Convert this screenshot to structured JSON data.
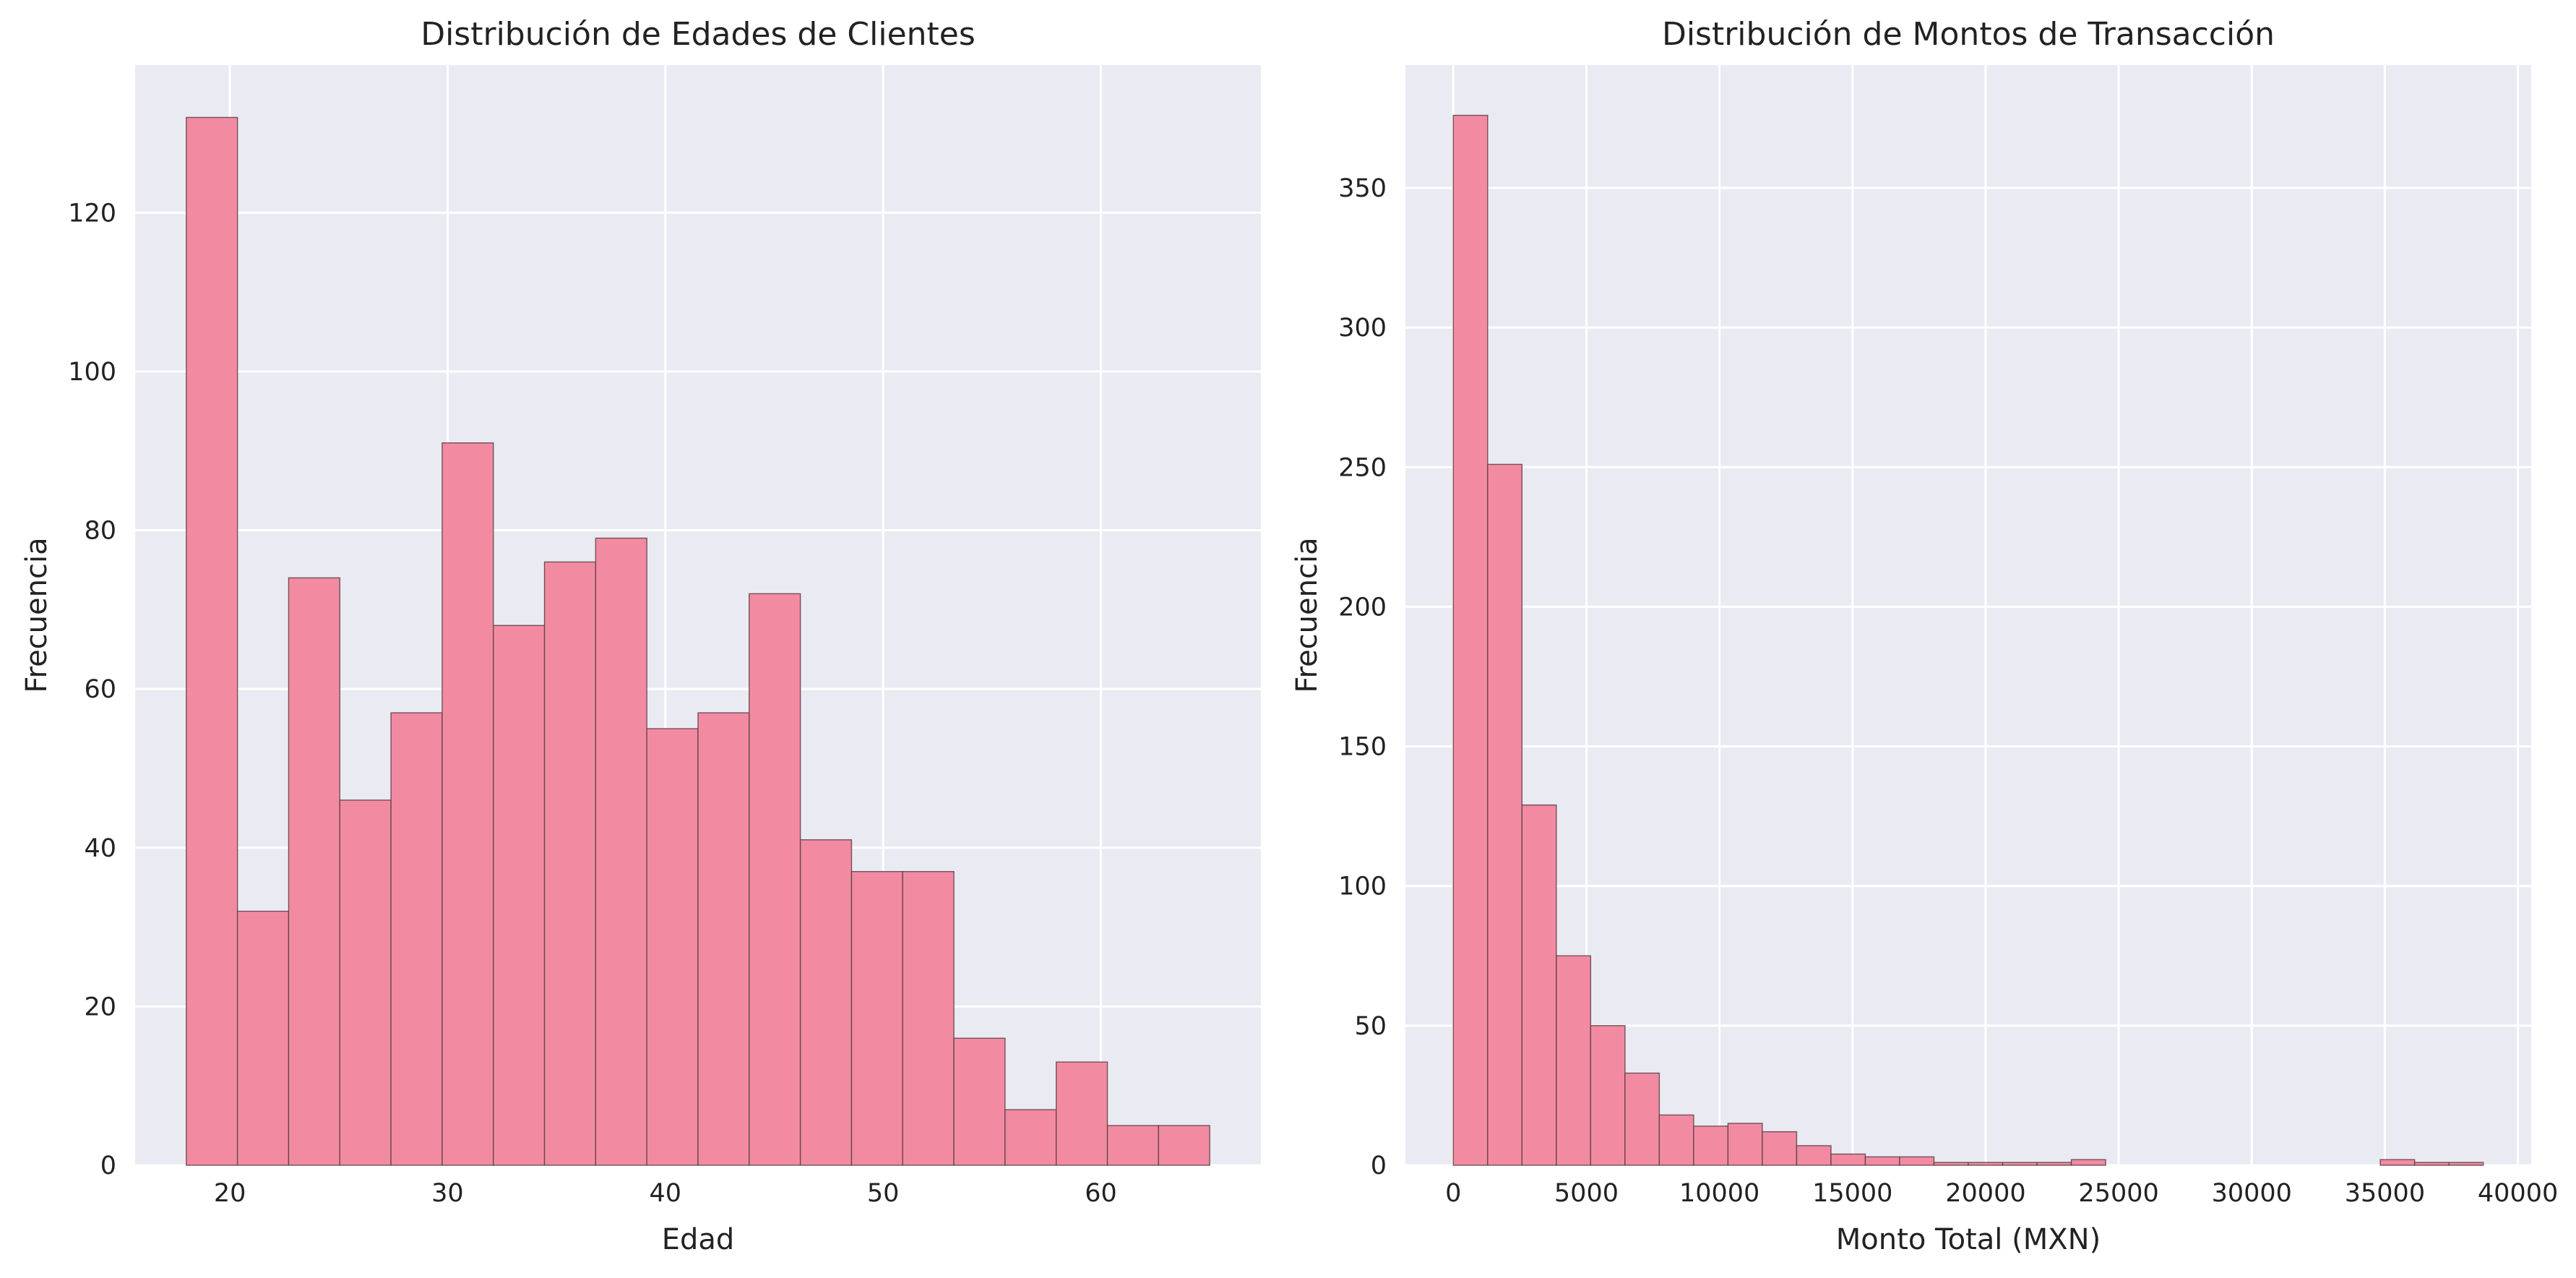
{
  "chart_data": [
    {
      "type": "bar",
      "title": "Distribución de Edades de Clientes",
      "xlabel": "Edad",
      "ylabel": "Frecuencia",
      "xlim": [
        15.65,
        67.35
      ],
      "ylim": [
        0,
        138.6
      ],
      "xticks": [
        20,
        30,
        40,
        50,
        60
      ],
      "yticks": [
        0,
        20,
        40,
        60,
        80,
        100,
        120
      ],
      "grid": true,
      "bins": [
        {
          "x0": 18.0,
          "x1": 20.35,
          "value": 132
        },
        {
          "x0": 20.35,
          "x1": 22.7,
          "value": 32
        },
        {
          "x0": 22.7,
          "x1": 25.05,
          "value": 74
        },
        {
          "x0": 25.05,
          "x1": 27.4,
          "value": 46
        },
        {
          "x0": 27.4,
          "x1": 29.75,
          "value": 57
        },
        {
          "x0": 29.75,
          "x1": 32.1,
          "value": 91
        },
        {
          "x0": 32.1,
          "x1": 34.45,
          "value": 68
        },
        {
          "x0": 34.45,
          "x1": 36.8,
          "value": 76
        },
        {
          "x0": 36.8,
          "x1": 39.15,
          "value": 79
        },
        {
          "x0": 39.15,
          "x1": 41.5,
          "value": 55
        },
        {
          "x0": 41.5,
          "x1": 43.85,
          "value": 57
        },
        {
          "x0": 43.85,
          "x1": 46.2,
          "value": 72
        },
        {
          "x0": 46.2,
          "x1": 48.55,
          "value": 41
        },
        {
          "x0": 48.55,
          "x1": 50.9,
          "value": 37
        },
        {
          "x0": 50.9,
          "x1": 53.25,
          "value": 37
        },
        {
          "x0": 53.25,
          "x1": 55.6,
          "value": 16
        },
        {
          "x0": 55.6,
          "x1": 57.95,
          "value": 7
        },
        {
          "x0": 57.95,
          "x1": 60.3,
          "value": 13
        },
        {
          "x0": 60.3,
          "x1": 62.65,
          "value": 5
        },
        {
          "x0": 62.65,
          "x1": 65.0,
          "value": 5
        }
      ]
    },
    {
      "type": "bar",
      "title": "Distribución de Montos de Transacción",
      "xlabel": "Monto Total (MXN)",
      "ylabel": "Frecuencia",
      "xlim": [
        -1800,
        40500
      ],
      "ylim": [
        0,
        394
      ],
      "xticks": [
        0,
        5000,
        10000,
        15000,
        20000,
        25000,
        30000,
        35000,
        40000
      ],
      "yticks": [
        0,
        50,
        100,
        150,
        200,
        250,
        300,
        350
      ],
      "grid": true,
      "bins": [
        {
          "x0": 0,
          "x1": 1290,
          "value": 376
        },
        {
          "x0": 1290,
          "x1": 2580,
          "value": 251
        },
        {
          "x0": 2580,
          "x1": 3870,
          "value": 129
        },
        {
          "x0": 3870,
          "x1": 5160,
          "value": 75
        },
        {
          "x0": 5160,
          "x1": 6450,
          "value": 50
        },
        {
          "x0": 6450,
          "x1": 7740,
          "value": 33
        },
        {
          "x0": 7740,
          "x1": 9030,
          "value": 18
        },
        {
          "x0": 9030,
          "x1": 10320,
          "value": 14
        },
        {
          "x0": 10320,
          "x1": 11610,
          "value": 15
        },
        {
          "x0": 11610,
          "x1": 12900,
          "value": 12
        },
        {
          "x0": 12900,
          "x1": 14190,
          "value": 7
        },
        {
          "x0": 14190,
          "x1": 15480,
          "value": 4
        },
        {
          "x0": 15480,
          "x1": 16770,
          "value": 3
        },
        {
          "x0": 16770,
          "x1": 18060,
          "value": 3
        },
        {
          "x0": 18060,
          "x1": 19350,
          "value": 1
        },
        {
          "x0": 19350,
          "x1": 20640,
          "value": 1
        },
        {
          "x0": 20640,
          "x1": 21930,
          "value": 1
        },
        {
          "x0": 21930,
          "x1": 23220,
          "value": 1
        },
        {
          "x0": 23220,
          "x1": 24510,
          "value": 2
        },
        {
          "x0": 24510,
          "x1": 25800,
          "value": 0
        },
        {
          "x0": 25800,
          "x1": 27090,
          "value": 0
        },
        {
          "x0": 27090,
          "x1": 28380,
          "value": 0
        },
        {
          "x0": 28380,
          "x1": 29670,
          "value": 0
        },
        {
          "x0": 29670,
          "x1": 30960,
          "value": 0
        },
        {
          "x0": 30960,
          "x1": 32250,
          "value": 0
        },
        {
          "x0": 32250,
          "x1": 33540,
          "value": 0
        },
        {
          "x0": 33540,
          "x1": 34830,
          "value": 0
        },
        {
          "x0": 34830,
          "x1": 36120,
          "value": 2
        },
        {
          "x0": 36120,
          "x1": 37410,
          "value": 1
        },
        {
          "x0": 37410,
          "x1": 38700,
          "value": 1
        }
      ]
    }
  ],
  "colors": {
    "bar_fill": "#f28ba1",
    "bar_edge": "#5a4048",
    "plot_background": "#eaeaf2",
    "grid": "#ffffff"
  }
}
